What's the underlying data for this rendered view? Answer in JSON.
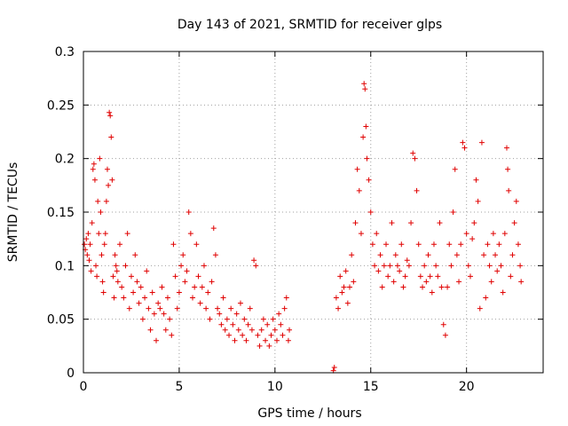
{
  "chart_data": {
    "type": "scatter",
    "title": "Day 143 of 2021, SRMTID for receiver glps",
    "xlabel": "GPS time / hours",
    "ylabel": "SRMTID / TECUs",
    "xlim": [
      0,
      24
    ],
    "ylim": [
      0,
      0.3
    ],
    "xticks": [
      0,
      5,
      10,
      15,
      20
    ],
    "yticks": [
      0,
      0.05,
      0.1,
      0.15,
      0.2,
      0.25,
      0.3
    ],
    "ytick_labels": [
      "0",
      "0.05",
      "0.1",
      "0.15",
      "0.2",
      "0.25",
      "0.3"
    ],
    "grid": true,
    "marker": "plus",
    "color": "#e00000",
    "series": [
      {
        "name": "SRMTID",
        "points": [
          [
            0.05,
            0.12
          ],
          [
            0.1,
            0.115
          ],
          [
            0.15,
            0.125
          ],
          [
            0.2,
            0.11
          ],
          [
            0.25,
            0.13
          ],
          [
            0.3,
            0.105
          ],
          [
            0.35,
            0.12
          ],
          [
            0.4,
            0.095
          ],
          [
            0.45,
            0.14
          ],
          [
            0.5,
            0.19
          ],
          [
            0.55,
            0.195
          ],
          [
            0.6,
            0.18
          ],
          [
            0.65,
            0.1
          ],
          [
            0.7,
            0.09
          ],
          [
            0.75,
            0.16
          ],
          [
            0.8,
            0.13
          ],
          [
            0.85,
            0.2
          ],
          [
            0.9,
            0.15
          ],
          [
            0.95,
            0.11
          ],
          [
            1.0,
            0.085
          ],
          [
            1.05,
            0.075
          ],
          [
            1.1,
            0.12
          ],
          [
            1.15,
            0.13
          ],
          [
            1.2,
            0.16
          ],
          [
            1.25,
            0.19
          ],
          [
            1.3,
            0.175
          ],
          [
            1.35,
            0.243
          ],
          [
            1.4,
            0.24
          ],
          [
            1.45,
            0.22
          ],
          [
            1.5,
            0.18
          ],
          [
            1.55,
            0.09
          ],
          [
            1.6,
            0.07
          ],
          [
            1.65,
            0.11
          ],
          [
            1.7,
            0.1
          ],
          [
            1.75,
            0.095
          ],
          [
            1.8,
            0.085
          ],
          [
            1.9,
            0.12
          ],
          [
            2.0,
            0.08
          ],
          [
            2.1,
            0.07
          ],
          [
            2.2,
            0.1
          ],
          [
            2.3,
            0.13
          ],
          [
            2.4,
            0.06
          ],
          [
            2.5,
            0.09
          ],
          [
            2.6,
            0.075
          ],
          [
            2.7,
            0.11
          ],
          [
            2.8,
            0.085
          ],
          [
            2.9,
            0.065
          ],
          [
            3.0,
            0.08
          ],
          [
            3.1,
            0.05
          ],
          [
            3.2,
            0.07
          ],
          [
            3.3,
            0.095
          ],
          [
            3.4,
            0.06
          ],
          [
            3.5,
            0.04
          ],
          [
            3.6,
            0.075
          ],
          [
            3.7,
            0.055
          ],
          [
            3.8,
            0.03
          ],
          [
            3.9,
            0.065
          ],
          [
            4.0,
            0.06
          ],
          [
            4.1,
            0.08
          ],
          [
            4.2,
            0.055
          ],
          [
            4.3,
            0.04
          ],
          [
            4.4,
            0.07
          ],
          [
            4.5,
            0.05
          ],
          [
            4.6,
            0.035
          ],
          [
            4.7,
            0.12
          ],
          [
            4.8,
            0.09
          ],
          [
            4.9,
            0.06
          ],
          [
            5.0,
            0.075
          ],
          [
            5.1,
            0.1
          ],
          [
            5.2,
            0.11
          ],
          [
            5.3,
            0.085
          ],
          [
            5.4,
            0.095
          ],
          [
            5.5,
            0.15
          ],
          [
            5.6,
            0.13
          ],
          [
            5.7,
            0.07
          ],
          [
            5.8,
            0.08
          ],
          [
            5.9,
            0.12
          ],
          [
            6.0,
            0.09
          ],
          [
            6.1,
            0.065
          ],
          [
            6.2,
            0.08
          ],
          [
            6.3,
            0.1
          ],
          [
            6.4,
            0.06
          ],
          [
            6.5,
            0.075
          ],
          [
            6.6,
            0.05
          ],
          [
            6.7,
            0.085
          ],
          [
            6.8,
            0.135
          ],
          [
            6.9,
            0.11
          ],
          [
            7.0,
            0.06
          ],
          [
            7.1,
            0.055
          ],
          [
            7.2,
            0.045
          ],
          [
            7.3,
            0.07
          ],
          [
            7.4,
            0.04
          ],
          [
            7.5,
            0.05
          ],
          [
            7.6,
            0.035
          ],
          [
            7.7,
            0.06
          ],
          [
            7.8,
            0.045
          ],
          [
            7.9,
            0.03
          ],
          [
            8.0,
            0.055
          ],
          [
            8.1,
            0.04
          ],
          [
            8.2,
            0.065
          ],
          [
            8.3,
            0.035
          ],
          [
            8.4,
            0.05
          ],
          [
            8.5,
            0.03
          ],
          [
            8.6,
            0.045
          ],
          [
            8.7,
            0.06
          ],
          [
            8.8,
            0.04
          ],
          [
            8.9,
            0.105
          ],
          [
            9.0,
            0.1
          ],
          [
            9.1,
            0.035
          ],
          [
            9.2,
            0.025
          ],
          [
            9.3,
            0.04
          ],
          [
            9.4,
            0.05
          ],
          [
            9.5,
            0.03
          ],
          [
            9.6,
            0.045
          ],
          [
            9.7,
            0.025
          ],
          [
            9.8,
            0.035
          ],
          [
            9.9,
            0.05
          ],
          [
            10.0,
            0.04
          ],
          [
            10.1,
            0.03
          ],
          [
            10.2,
            0.055
          ],
          [
            10.3,
            0.045
          ],
          [
            10.4,
            0.035
          ],
          [
            10.5,
            0.06
          ],
          [
            10.6,
            0.07
          ],
          [
            10.7,
            0.03
          ],
          [
            10.75,
            0.04
          ],
          [
            13.05,
            0.002
          ],
          [
            13.1,
            0.005
          ],
          [
            13.2,
            0.07
          ],
          [
            13.3,
            0.06
          ],
          [
            13.4,
            0.09
          ],
          [
            13.5,
            0.075
          ],
          [
            13.6,
            0.08
          ],
          [
            13.7,
            0.095
          ],
          [
            13.8,
            0.065
          ],
          [
            13.9,
            0.08
          ],
          [
            14.0,
            0.11
          ],
          [
            14.1,
            0.085
          ],
          [
            14.2,
            0.14
          ],
          [
            14.3,
            0.19
          ],
          [
            14.4,
            0.17
          ],
          [
            14.5,
            0.13
          ],
          [
            14.6,
            0.22
          ],
          [
            14.65,
            0.27
          ],
          [
            14.7,
            0.265
          ],
          [
            14.75,
            0.23
          ],
          [
            14.8,
            0.2
          ],
          [
            14.9,
            0.18
          ],
          [
            15.0,
            0.15
          ],
          [
            15.1,
            0.12
          ],
          [
            15.2,
            0.1
          ],
          [
            15.3,
            0.13
          ],
          [
            15.4,
            0.095
          ],
          [
            15.5,
            0.11
          ],
          [
            15.6,
            0.08
          ],
          [
            15.7,
            0.1
          ],
          [
            15.8,
            0.12
          ],
          [
            15.9,
            0.09
          ],
          [
            16.0,
            0.1
          ],
          [
            16.1,
            0.14
          ],
          [
            16.2,
            0.085
          ],
          [
            16.3,
            0.11
          ],
          [
            16.4,
            0.1
          ],
          [
            16.5,
            0.095
          ],
          [
            16.6,
            0.12
          ],
          [
            16.7,
            0.08
          ],
          [
            16.8,
            0.09
          ],
          [
            16.9,
            0.105
          ],
          [
            17.0,
            0.1
          ],
          [
            17.1,
            0.14
          ],
          [
            17.2,
            0.205
          ],
          [
            17.3,
            0.2
          ],
          [
            17.4,
            0.17
          ],
          [
            17.5,
            0.12
          ],
          [
            17.6,
            0.09
          ],
          [
            17.7,
            0.08
          ],
          [
            17.8,
            0.1
          ],
          [
            17.9,
            0.085
          ],
          [
            18.0,
            0.11
          ],
          [
            18.1,
            0.09
          ],
          [
            18.2,
            0.075
          ],
          [
            18.3,
            0.12
          ],
          [
            18.4,
            0.1
          ],
          [
            18.5,
            0.09
          ],
          [
            18.6,
            0.14
          ],
          [
            18.7,
            0.08
          ],
          [
            18.8,
            0.045
          ],
          [
            18.9,
            0.035
          ],
          [
            19.0,
            0.08
          ],
          [
            19.1,
            0.12
          ],
          [
            19.2,
            0.1
          ],
          [
            19.3,
            0.15
          ],
          [
            19.4,
            0.19
          ],
          [
            19.5,
            0.11
          ],
          [
            19.6,
            0.085
          ],
          [
            19.7,
            0.12
          ],
          [
            19.8,
            0.215
          ],
          [
            19.9,
            0.21
          ],
          [
            20.0,
            0.13
          ],
          [
            20.1,
            0.1
          ],
          [
            20.2,
            0.09
          ],
          [
            20.3,
            0.125
          ],
          [
            20.4,
            0.14
          ],
          [
            20.5,
            0.18
          ],
          [
            20.6,
            0.16
          ],
          [
            20.7,
            0.06
          ],
          [
            20.8,
            0.215
          ],
          [
            20.9,
            0.11
          ],
          [
            21.0,
            0.07
          ],
          [
            21.1,
            0.12
          ],
          [
            21.2,
            0.1
          ],
          [
            21.3,
            0.085
          ],
          [
            21.4,
            0.13
          ],
          [
            21.5,
            0.11
          ],
          [
            21.6,
            0.095
          ],
          [
            21.7,
            0.12
          ],
          [
            21.8,
            0.1
          ],
          [
            21.9,
            0.075
          ],
          [
            22.0,
            0.13
          ],
          [
            22.1,
            0.21
          ],
          [
            22.15,
            0.19
          ],
          [
            22.2,
            0.17
          ],
          [
            22.3,
            0.09
          ],
          [
            22.4,
            0.11
          ],
          [
            22.5,
            0.14
          ],
          [
            22.6,
            0.16
          ],
          [
            22.7,
            0.12
          ],
          [
            22.8,
            0.1
          ],
          [
            22.85,
            0.085
          ]
        ]
      }
    ]
  }
}
